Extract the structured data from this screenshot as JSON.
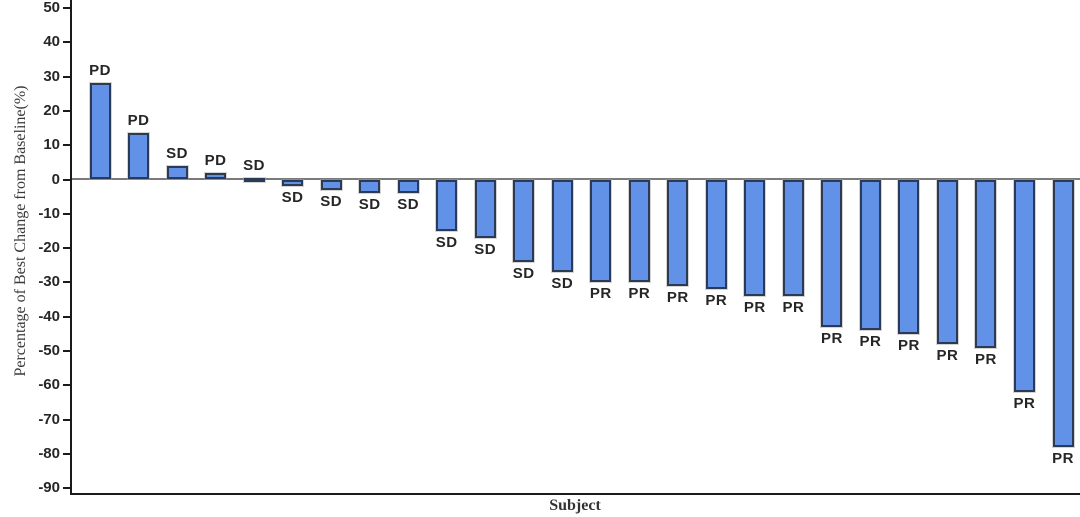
{
  "chart_data": {
    "type": "bar",
    "subtype": "waterfall",
    "title": "",
    "xlabel": "Subject",
    "ylabel": "Percentage of Best Change from Baseline(%)",
    "ylim": [
      -90,
      50
    ],
    "yticks": [
      50,
      40,
      30,
      20,
      10,
      0,
      -10,
      -20,
      -30,
      -40,
      -50,
      -60,
      -70,
      -80,
      -90
    ],
    "grid": false,
    "legend": "none",
    "points": [
      {
        "label": "PD",
        "value": 28
      },
      {
        "label": "PD",
        "value": 13.5
      },
      {
        "label": "SD",
        "value": 4
      },
      {
        "label": "PD",
        "value": 2
      },
      {
        "label": "SD",
        "value": 0
      },
      {
        "label": "SD",
        "value": -2
      },
      {
        "label": "SD",
        "value": -3
      },
      {
        "label": "SD",
        "value": -4
      },
      {
        "label": "SD",
        "value": -4
      },
      {
        "label": "SD",
        "value": -15
      },
      {
        "label": "SD",
        "value": -17
      },
      {
        "label": "SD",
        "value": -24
      },
      {
        "label": "SD",
        "value": -27
      },
      {
        "label": "PR",
        "value": -30
      },
      {
        "label": "PR",
        "value": -30
      },
      {
        "label": "PR",
        "value": -31
      },
      {
        "label": "PR",
        "value": -32
      },
      {
        "label": "PR",
        "value": -34
      },
      {
        "label": "PR",
        "value": -34
      },
      {
        "label": "PR",
        "value": -43
      },
      {
        "label": "PR",
        "value": -44
      },
      {
        "label": "PR",
        "value": -45
      },
      {
        "label": "PR",
        "value": -48
      },
      {
        "label": "PR",
        "value": -49
      },
      {
        "label": "PR",
        "value": -62
      },
      {
        "label": "PR",
        "value": -78
      }
    ],
    "colors": {
      "bar_fill": "#6292e7",
      "bar_border": "#2b3a55",
      "axis": "#1a1a1a",
      "zero_line": "#7a7a7a",
      "text": "#262626"
    }
  }
}
